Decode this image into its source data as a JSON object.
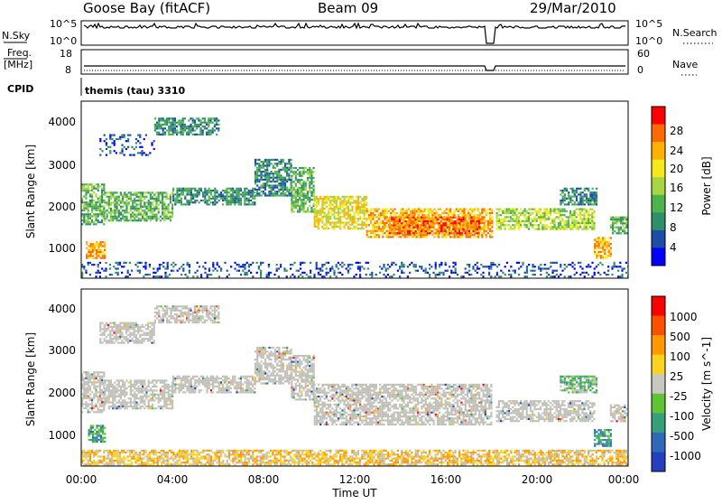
{
  "header": {
    "station": "Goose Bay (fitACF)",
    "beam": "Beam 09",
    "date": "29/Mar/2010"
  },
  "top_panels": {
    "nsky_label": "N.Sky",
    "nsky_ticks": [
      "10^5",
      "10^0"
    ],
    "nsearch_label": "N.Search",
    "nsearch_ticks": [
      "10^5",
      "10^0"
    ],
    "freq_label_1": "Freq.",
    "freq_label_2": "[MHz]",
    "freq_ticks": [
      "18",
      "8"
    ],
    "nave_label": "Nave",
    "nave_ticks": [
      "60",
      "0"
    ],
    "cpid_label": "CPID",
    "cpid_value": "themis (tau) 3310"
  },
  "colors": {
    "power_scale": [
      "#0000ff",
      "#1a4ea8",
      "#2f8f6a",
      "#4fb34c",
      "#a8d640",
      "#f4e91c",
      "#ffb000",
      "#ff6a00",
      "#ff0000"
    ],
    "velocity_scale": [
      "#2440c0",
      "#2e6ab8",
      "#35a07a",
      "#5ec432",
      "#c8c8c0",
      "#ffd21e",
      "#ff9a00",
      "#ff5000",
      "#ff0000"
    ],
    "ground_scatter": "#c0c0b8"
  },
  "chart_data": [
    {
      "type": "heatmap",
      "panel": "power",
      "ylabel": "Slant Range [km]",
      "yticks": [
        "4000",
        "3000",
        "2000",
        "1000"
      ],
      "ylim": [
        200,
        4500
      ],
      "xlim": [
        "00:00",
        "24:00"
      ],
      "colorbar_label": "Power [dB]",
      "colorbar_ticks": [
        "28",
        "24",
        "20",
        "16",
        "12",
        "8",
        "4"
      ],
      "regions": [
        {
          "t0": 0.0,
          "t1": 1.0,
          "r0": 1500,
          "r1": 2500,
          "level": 3
        },
        {
          "t0": 0.2,
          "t1": 1.0,
          "r0": 700,
          "r1": 1100,
          "level": 6
        },
        {
          "t0": 1.0,
          "t1": 4.0,
          "r0": 1600,
          "r1": 2300,
          "level": 3
        },
        {
          "t0": 0.8,
          "t1": 3.2,
          "r0": 3200,
          "r1": 3700,
          "level": 1
        },
        {
          "t0": 3.2,
          "t1": 6.0,
          "r0": 3700,
          "r1": 4100,
          "level": 2
        },
        {
          "t0": 4.0,
          "t1": 7.6,
          "r0": 2000,
          "r1": 2400,
          "level": 2
        },
        {
          "t0": 7.6,
          "t1": 9.2,
          "r0": 2200,
          "r1": 3100,
          "level": 2
        },
        {
          "t0": 9.2,
          "t1": 10.2,
          "r0": 1800,
          "r1": 2900,
          "level": 3
        },
        {
          "t0": 10.2,
          "t1": 12.5,
          "r0": 1400,
          "r1": 2200,
          "level": 5
        },
        {
          "t0": 12.5,
          "t1": 18.0,
          "r0": 1200,
          "r1": 1900,
          "level": 6
        },
        {
          "t0": 13.5,
          "t1": 17.5,
          "r0": 1300,
          "r1": 1700,
          "level": 7
        },
        {
          "t0": 18.2,
          "t1": 22.5,
          "r0": 1400,
          "r1": 1900,
          "level": 4
        },
        {
          "t0": 21.0,
          "t1": 22.6,
          "r0": 2000,
          "r1": 2400,
          "level": 2
        },
        {
          "t0": 22.5,
          "t1": 23.2,
          "r0": 700,
          "r1": 1200,
          "level": 6
        },
        {
          "t0": 23.2,
          "t1": 24.0,
          "r0": 1300,
          "r1": 1700,
          "level": 3
        },
        {
          "t0": 0.0,
          "t1": 24.0,
          "r0": 250,
          "r1": 600,
          "level": 1
        }
      ]
    },
    {
      "type": "heatmap",
      "panel": "velocity",
      "ylabel": "Slant Range [km]",
      "yticks": [
        "4000",
        "3000",
        "2000",
        "1000"
      ],
      "ylim": [
        200,
        4500
      ],
      "xlim": [
        "00:00",
        "24:00"
      ],
      "xlabel": "Time UT",
      "xticks": [
        "00:00",
        "04:00",
        "08:00",
        "12:00",
        "16:00",
        "20:00",
        "00:00"
      ],
      "colorbar_label": "Velocity [m s^-1]",
      "colorbar_ticks": [
        "1000",
        "500",
        "100",
        "25",
        "-25",
        "-100",
        "-500",
        "-1000"
      ],
      "regions": [
        {
          "t0": 0.0,
          "t1": 1.0,
          "r0": 1500,
          "r1": 2500,
          "level": 4
        },
        {
          "t0": 0.3,
          "t1": 1.0,
          "r0": 800,
          "r1": 1200,
          "level": 2
        },
        {
          "t0": 1.0,
          "t1": 4.0,
          "r0": 1600,
          "r1": 2300,
          "level": 4
        },
        {
          "t0": 0.8,
          "t1": 3.2,
          "r0": 3200,
          "r1": 3700,
          "level": 4
        },
        {
          "t0": 3.2,
          "t1": 6.0,
          "r0": 3700,
          "r1": 4100,
          "level": 4
        },
        {
          "t0": 4.0,
          "t1": 7.6,
          "r0": 2000,
          "r1": 2400,
          "level": 4
        },
        {
          "t0": 7.6,
          "t1": 9.2,
          "r0": 2200,
          "r1": 3100,
          "level": 4
        },
        {
          "t0": 9.2,
          "t1": 10.2,
          "r0": 1800,
          "r1": 2900,
          "level": 4
        },
        {
          "t0": 10.2,
          "t1": 18.0,
          "r0": 1200,
          "r1": 2200,
          "level": 4
        },
        {
          "t0": 18.2,
          "t1": 22.5,
          "r0": 1300,
          "r1": 1800,
          "level": 4
        },
        {
          "t0": 21.0,
          "t1": 22.6,
          "r0": 2000,
          "r1": 2400,
          "level": 3
        },
        {
          "t0": 22.5,
          "t1": 23.2,
          "r0": 700,
          "r1": 1100,
          "level": 2
        },
        {
          "t0": 23.2,
          "t1": 24.0,
          "r0": 1300,
          "r1": 1700,
          "level": 4
        },
        {
          "t0": 0.0,
          "t1": 24.0,
          "r0": 250,
          "r1": 600,
          "level": 5
        }
      ]
    }
  ]
}
